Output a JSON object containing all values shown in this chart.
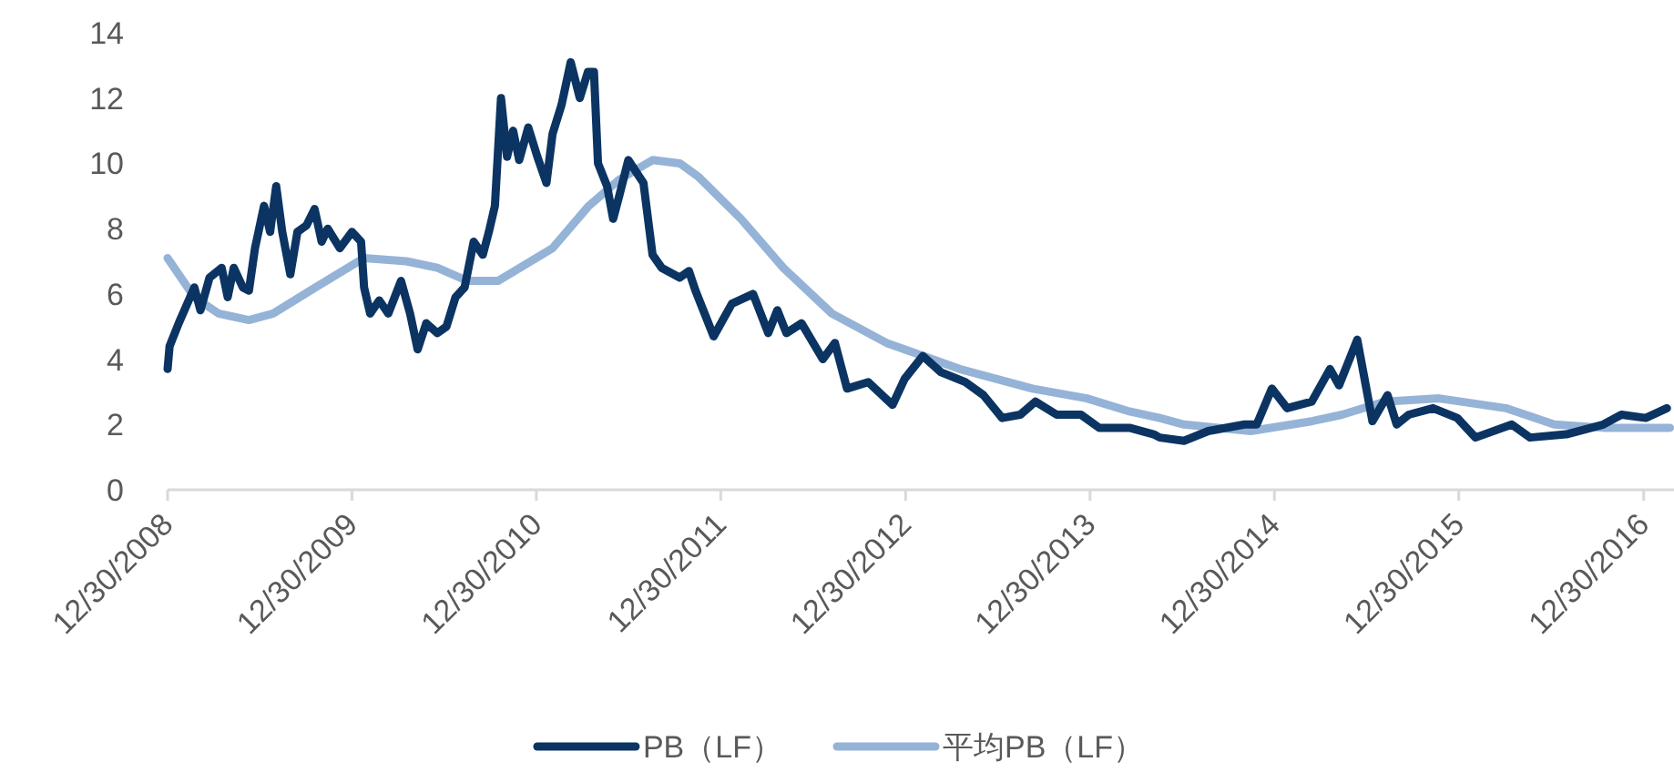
{
  "chart_data": {
    "type": "line",
    "xlim": [
      "2008-12-30",
      "2017-02-28"
    ],
    "xticks": [
      {
        "value": "2008-12-30",
        "label": "12/30/2008"
      },
      {
        "value": "2009-12-30",
        "label": "12/30/2009"
      },
      {
        "value": "2010-12-30",
        "label": "12/30/2010"
      },
      {
        "value": "2011-12-30",
        "label": "12/30/2011"
      },
      {
        "value": "2012-12-30",
        "label": "12/30/2012"
      },
      {
        "value": "2013-12-30",
        "label": "12/30/2013"
      },
      {
        "value": "2014-12-30",
        "label": "12/30/2014"
      },
      {
        "value": "2015-12-30",
        "label": "12/30/2015"
      },
      {
        "value": "2016-12-30",
        "label": "12/30/2016"
      }
    ],
    "ylim": [
      0,
      14
    ],
    "yticks": [
      0,
      2,
      4,
      6,
      8,
      10,
      12,
      14
    ],
    "grid": false,
    "legend": "bottom",
    "line_style": "solid",
    "series": [
      {
        "name": "PB（LF）",
        "color": "#0b3463",
        "x": [
          "2008-12-30",
          "2009-01-03",
          "2009-01-21",
          "2009-02-21",
          "2009-03-05",
          "2009-03-23",
          "2009-04-16",
          "2009-04-28",
          "2009-05-10",
          "2009-05-28",
          "2009-06-09",
          "2009-06-21",
          "2009-07-09",
          "2009-07-21",
          "2009-08-02",
          "2009-08-14",
          "2009-08-30",
          "2009-09-13",
          "2009-10-01",
          "2009-10-17",
          "2009-10-31",
          "2009-11-12",
          "2009-12-06",
          "2009-12-30",
          "2010-01-17",
          "2010-01-23",
          "2010-02-04",
          "2010-02-22",
          "2010-03-12",
          "2010-04-06",
          "2010-04-24",
          "2010-05-09",
          "2010-05-26",
          "2010-06-17",
          "2010-07-05",
          "2010-07-23",
          "2010-08-10",
          "2010-08-28",
          "2010-09-15",
          "2010-09-27",
          "2010-10-09",
          "2010-10-21",
          "2010-11-02",
          "2010-11-14",
          "2010-11-26",
          "2010-12-14",
          "2011-01-01",
          "2011-01-19",
          "2011-01-31",
          "2011-02-18",
          "2011-03-08",
          "2011-03-26",
          "2011-04-11",
          "2011-04-23",
          "2011-05-01",
          "2011-05-19",
          "2011-05-31",
          "2011-06-12",
          "2011-06-30",
          "2011-07-30",
          "2011-08-17",
          "2011-09-04",
          "2011-10-10",
          "2011-10-28",
          "2011-11-10",
          "2011-12-16",
          "2012-01-21",
          "2012-03-03",
          "2012-04-02",
          "2012-04-20",
          "2012-05-08",
          "2012-06-07",
          "2012-07-19",
          "2012-08-12",
          "2012-09-05",
          "2012-10-17",
          "2012-12-04",
          "2012-12-28",
          "2013-02-02",
          "2013-03-10",
          "2013-04-27",
          "2013-06-02",
          "2013-07-09",
          "2013-08-14",
          "2013-09-13",
          "2013-10-25",
          "2013-12-12",
          "2014-01-17",
          "2014-03-18",
          "2014-05-05",
          "2014-05-17",
          "2014-07-04",
          "2014-08-21",
          "2014-11-01",
          "2014-11-25",
          "2014-12-25",
          "2015-01-24",
          "2015-03-14",
          "2015-04-19",
          "2015-05-07",
          "2015-06-12",
          "2015-06-30",
          "2015-07-12",
          "2015-08-11",
          "2015-08-29",
          "2015-09-22",
          "2015-11-09",
          "2015-12-27",
          "2016-02-01",
          "2016-04-13",
          "2016-05-19",
          "2016-07-30",
          "2016-10-11",
          "2016-11-16",
          "2017-01-03",
          "2017-02-14"
        ],
        "values": [
          3.7,
          4.4,
          5.1,
          6.2,
          5.5,
          6.5,
          6.8,
          5.9,
          6.8,
          6.2,
          6.1,
          7.4,
          8.7,
          7.9,
          9.3,
          7.9,
          6.6,
          7.9,
          8.1,
          8.6,
          7.6,
          8.0,
          7.4,
          7.9,
          7.6,
          6.2,
          5.4,
          5.8,
          5.4,
          6.4,
          5.4,
          4.3,
          5.1,
          4.8,
          5.0,
          5.9,
          6.2,
          7.6,
          7.2,
          7.9,
          8.7,
          12.0,
          10.2,
          11.0,
          10.1,
          11.1,
          10.2,
          9.4,
          10.9,
          11.8,
          13.1,
          12.0,
          12.8,
          12.8,
          10.0,
          9.3,
          8.3,
          9.0,
          10.1,
          9.4,
          7.2,
          6.8,
          6.5,
          6.7,
          6.1,
          4.7,
          5.7,
          6.0,
          4.8,
          5.5,
          4.8,
          5.1,
          4.0,
          4.5,
          3.1,
          3.3,
          2.6,
          3.4,
          4.1,
          3.6,
          3.3,
          2.9,
          2.2,
          2.3,
          2.7,
          2.3,
          2.3,
          1.9,
          1.9,
          1.7,
          1.6,
          1.5,
          1.8,
          2.0,
          2.0,
          3.1,
          2.5,
          2.7,
          3.7,
          3.2,
          4.6,
          3.1,
          2.1,
          2.9,
          2.0,
          2.3,
          2.5,
          2.2,
          1.6,
          2.0,
          1.6,
          1.7,
          2.0,
          2.3,
          2.2,
          2.5
        ]
      },
      {
        "name": "平均PB（LF）",
        "color": "#95b3d7",
        "x": [
          "2008-12-30",
          "2009-02-21",
          "2009-04-10",
          "2009-06-09",
          "2009-07-27",
          "2009-10-19",
          "2010-01-23",
          "2010-04-17",
          "2010-06-17",
          "2010-08-16",
          "2010-10-15",
          "2011-01-31",
          "2011-04-13",
          "2011-06-12",
          "2011-08-17",
          "2011-10-10",
          "2011-11-15",
          "2012-02-08",
          "2012-05-02",
          "2012-08-06",
          "2012-11-22",
          "2013-04-16",
          "2013-09-07",
          "2013-12-24",
          "2014-03-18",
          "2014-05-17",
          "2014-07-04",
          "2014-11-13",
          "2015-03-14",
          "2015-05-13",
          "2015-08-05",
          "2015-11-21",
          "2016-04-01",
          "2016-07-06",
          "2016-10-11",
          "2017-02-20"
        ],
        "values": [
          7.1,
          5.9,
          5.4,
          5.2,
          5.4,
          6.2,
          7.1,
          7.0,
          6.8,
          6.4,
          6.4,
          7.4,
          8.7,
          9.5,
          10.1,
          10.0,
          9.6,
          8.3,
          6.8,
          5.4,
          4.5,
          3.7,
          3.1,
          2.8,
          2.4,
          2.2,
          2.0,
          1.8,
          2.1,
          2.3,
          2.7,
          2.8,
          2.5,
          2.0,
          1.9,
          1.9
        ]
      }
    ]
  }
}
